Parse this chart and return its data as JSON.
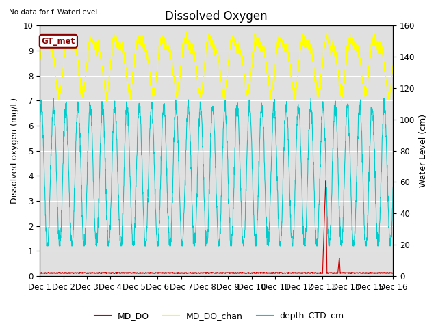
{
  "title": "Dissolved Oxygen",
  "top_left_text": "No data for f_WaterLevel",
  "annotation_box": "GT_met",
  "ylabel_left": "Dissolved oxygen (mg/L)",
  "ylabel_right": "Water Level (cm)",
  "ylim_left": [
    0.0,
    10.0
  ],
  "ylim_right": [
    0,
    160
  ],
  "background_color": "#e0e0e0",
  "fig_background": "#ffffff",
  "md_do_color": "#cc0000",
  "md_do_chan_color": "#ffff00",
  "depth_ctd_color": "#00cccc",
  "legend_labels": [
    "MD_DO",
    "MD_DO_chan",
    "depth_CTD_cm"
  ],
  "title_fontsize": 12,
  "label_fontsize": 9,
  "tick_fontsize": 8.5
}
